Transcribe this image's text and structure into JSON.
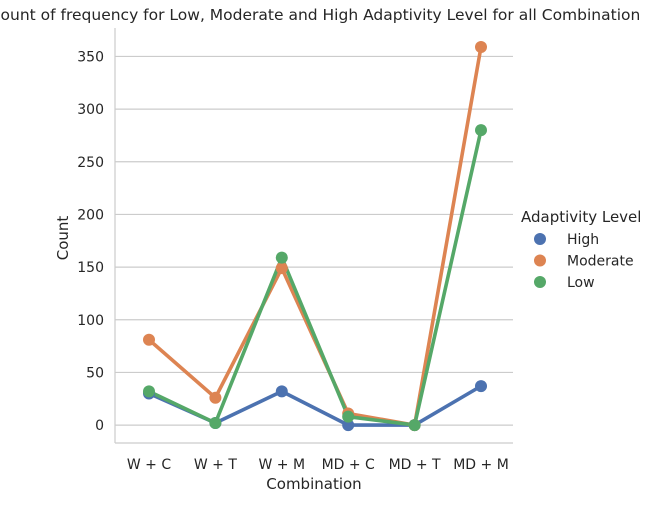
{
  "chart_data": {
    "type": "line",
    "title": "Count of frequency for Low, Moderate and High Adaptivity Level for all Combination",
    "xlabel": "Combination",
    "ylabel": "Count",
    "categories": [
      "W + C",
      "W + T",
      "W + M",
      "MD + C",
      "MD + T",
      "MD + M"
    ],
    "ylim": [
      -17,
      377
    ],
    "yticks": [
      0,
      50,
      100,
      150,
      200,
      250,
      300,
      350
    ],
    "grid": "horizontal",
    "legend": {
      "title": "Adaptivity Level",
      "placement": "right"
    },
    "series": [
      {
        "name": "High",
        "color": "#4c72b0",
        "values": [
          30,
          2,
          32,
          0,
          0,
          37
        ]
      },
      {
        "name": "Moderate",
        "color": "#dd8452",
        "values": [
          81,
          26,
          149,
          11,
          0,
          359
        ]
      },
      {
        "name": "Low",
        "color": "#55a868",
        "values": [
          32,
          2,
          159,
          8,
          0,
          280
        ]
      }
    ]
  }
}
